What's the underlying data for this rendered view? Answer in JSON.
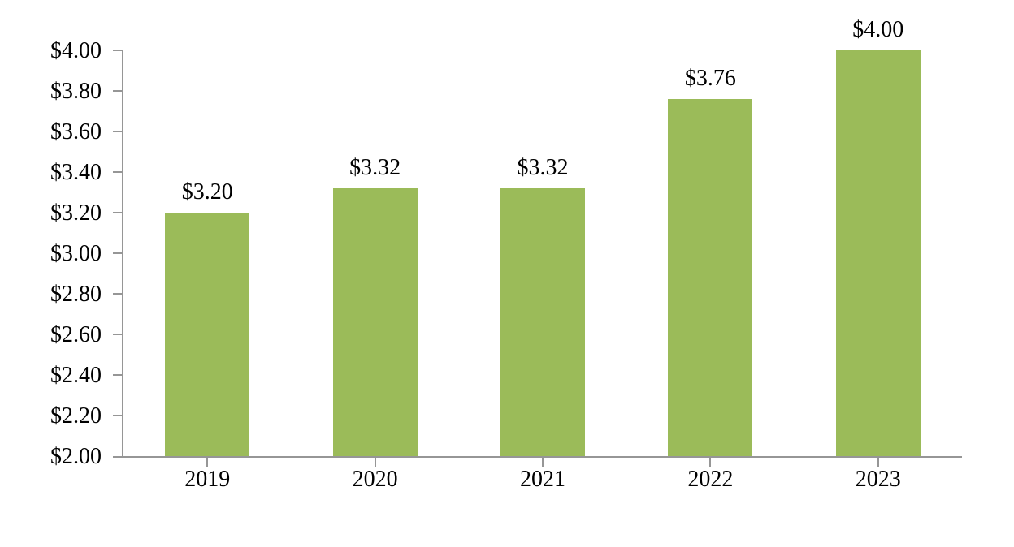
{
  "chart_data": {
    "type": "bar",
    "title": "",
    "xlabel": "",
    "ylabel": "",
    "categories": [
      "2019",
      "2020",
      "2021",
      "2022",
      "2023"
    ],
    "values": [
      3.2,
      3.32,
      3.32,
      3.76,
      4.0
    ],
    "bar_labels": [
      "$3.20",
      "$3.32",
      "$3.32",
      "$3.76",
      "$4.00"
    ],
    "ylim": [
      2.0,
      4.0
    ],
    "ytick_step": 0.2,
    "ytick_labels": [
      "$2.00",
      "$2.20",
      "$2.40",
      "$2.60",
      "$2.80",
      "$3.00",
      "$3.20",
      "$3.40",
      "$3.60",
      "$3.80",
      "$4.00"
    ],
    "grid": false,
    "legend": null,
    "colors": {
      "bar": "#9BBB59",
      "axis": "#969696",
      "text": "#000000",
      "background": "#FFFFFF"
    }
  }
}
